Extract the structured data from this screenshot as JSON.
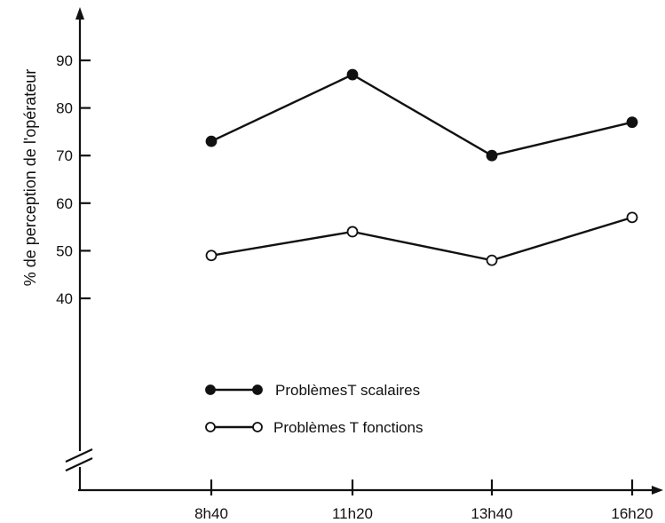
{
  "chart_data": {
    "type": "line",
    "title": "",
    "xlabel": "",
    "ylabel": "% de perception de l'opérateur",
    "categories": [
      "8h40",
      "11h20",
      "13h40",
      "16h20"
    ],
    "yticks": [
      40,
      50,
      60,
      70,
      80,
      90
    ],
    "ylim": [
      40,
      90
    ],
    "axis_break": true,
    "grid": false,
    "legend_position": "bottom-center",
    "series": [
      {
        "name": "ProblèmesT scalaires",
        "marker": "filled-circle",
        "color": "#111111",
        "values": [
          73,
          87,
          70,
          77
        ]
      },
      {
        "name": "Problèmes T fonctions",
        "marker": "open-circle",
        "color": "#111111",
        "values": [
          49,
          54,
          48,
          57
        ]
      }
    ]
  }
}
